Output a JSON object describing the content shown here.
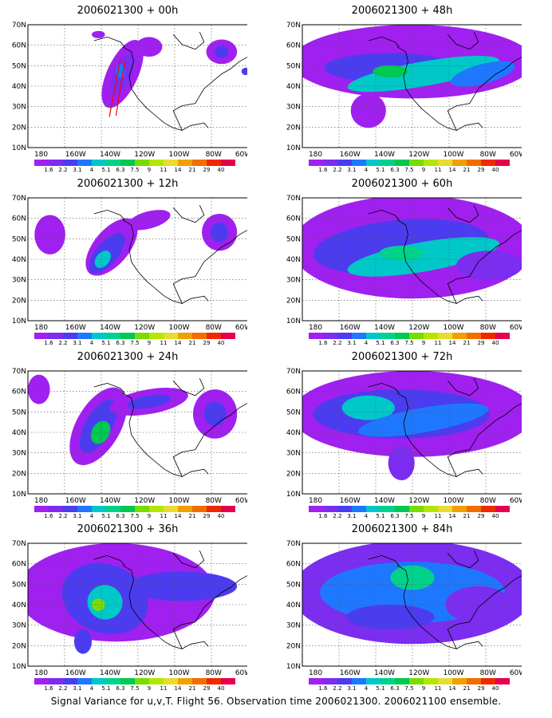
{
  "figure": {
    "footer": "Signal Variance for u,v,T. Flight 56. Observation time 2006021300. 2006021100 ensemble.",
    "lat_labels": [
      "70N",
      "60N",
      "50N",
      "40N",
      "30N",
      "20N",
      "10N"
    ],
    "lon_labels": [
      "180",
      "160W",
      "140W",
      "120W",
      "100W",
      "80W",
      "60W"
    ],
    "colorbar": {
      "labels": [
        "1.6",
        "2.2",
        "3.1",
        "4",
        "5.1",
        "6.3",
        "7.5",
        "9",
        "11",
        "14",
        "21",
        "29",
        "40"
      ],
      "colors": [
        "#a020f0",
        "#7b2df0",
        "#4b3cf0",
        "#1e78ff",
        "#00c8c8",
        "#00d28c",
        "#00c850",
        "#78dc00",
        "#b4e600",
        "#e6dc32",
        "#f0a000",
        "#f06e00",
        "#f02800",
        "#e6004c"
      ]
    },
    "colors": {
      "land_outline": "#000000",
      "grid": "#555555",
      "track": "#ff0000"
    }
  },
  "panels": [
    {
      "title": "2006021300 + 00h"
    },
    {
      "title": "2006021300 + 48h"
    },
    {
      "title": "2006021300 + 12h"
    },
    {
      "title": "2006021300 + 60h"
    },
    {
      "title": "2006021300 + 24h"
    },
    {
      "title": "2006021300 + 72h"
    },
    {
      "title": "2006021300 + 36h"
    },
    {
      "title": "2006021300 + 84h"
    }
  ]
}
